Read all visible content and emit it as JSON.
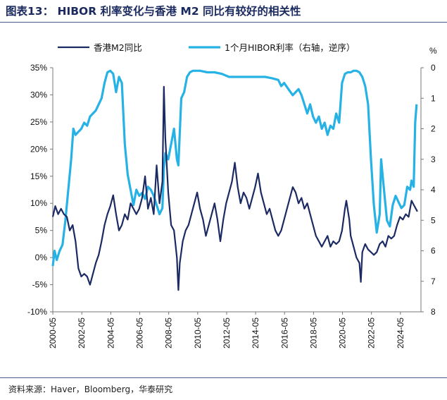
{
  "header": {
    "title": "图表13： HIBOR 利率变化与香港 M2 同比有较好的相关性"
  },
  "footer": {
    "source": "资料来源：Haver，Bloomberg，华泰研究"
  },
  "colors": {
    "m2": "#1b2a63",
    "hibor": "#27b2e6"
  },
  "chart_data": {
    "type": "line",
    "title": "",
    "legend_placement": "top",
    "grid": false,
    "x_ticks": [
      "2000-05",
      "2002-05",
      "2004-05",
      "2006-05",
      "2008-05",
      "2010-05",
      "2012-05",
      "2014-05",
      "2016-05",
      "2018-05",
      "2020-05",
      "2022-05",
      "2024-05"
    ],
    "x_range": [
      2000.33,
      2025.75
    ],
    "left_axis": {
      "ylim": [
        -10,
        35
      ],
      "ticks": [
        "-10%",
        "-5%",
        "0%",
        "5%",
        "10%",
        "15%",
        "20%",
        "25%",
        "30%",
        "35%"
      ]
    },
    "right_axis": {
      "unit": "%",
      "ylim": [
        0,
        8
      ],
      "inverted": true,
      "ticks": [
        "0",
        "1",
        "2",
        "3",
        "4",
        "5",
        "6",
        "7",
        "8"
      ]
    },
    "series": [
      {
        "name": "香港M2同比",
        "axis": "left",
        "points": [
          [
            2000.33,
            7.5
          ],
          [
            2000.5,
            9.5
          ],
          [
            2000.7,
            8
          ],
          [
            2000.9,
            9
          ],
          [
            2001.1,
            8
          ],
          [
            2001.3,
            7.5
          ],
          [
            2001.5,
            5
          ],
          [
            2001.7,
            6
          ],
          [
            2001.9,
            3
          ],
          [
            2002.1,
            -2
          ],
          [
            2002.3,
            -3.5
          ],
          [
            2002.5,
            -3
          ],
          [
            2002.7,
            -3.5
          ],
          [
            2002.9,
            -5
          ],
          [
            2003.1,
            -3
          ],
          [
            2003.3,
            -1
          ],
          [
            2003.5,
            0.5
          ],
          [
            2003.7,
            3
          ],
          [
            2003.9,
            6
          ],
          [
            2004.1,
            8
          ],
          [
            2004.3,
            9.5
          ],
          [
            2004.5,
            11.5
          ],
          [
            2004.7,
            8
          ],
          [
            2004.9,
            5
          ],
          [
            2005.1,
            6
          ],
          [
            2005.3,
            8
          ],
          [
            2005.5,
            7
          ],
          [
            2005.7,
            10
          ],
          [
            2005.9,
            9
          ],
          [
            2006.1,
            8
          ],
          [
            2006.3,
            9
          ],
          [
            2006.5,
            11
          ],
          [
            2006.7,
            15
          ],
          [
            2006.9,
            9
          ],
          [
            2007.1,
            11
          ],
          [
            2007.3,
            8
          ],
          [
            2007.5,
            17
          ],
          [
            2007.7,
            10
          ],
          [
            2007.9,
            14
          ],
          [
            2008.0,
            31.5
          ],
          [
            2008.1,
            22
          ],
          [
            2008.3,
            12
          ],
          [
            2008.5,
            6
          ],
          [
            2008.7,
            5
          ],
          [
            2008.9,
            0
          ],
          [
            2009.0,
            -6
          ],
          [
            2009.1,
            -1
          ],
          [
            2009.3,
            3
          ],
          [
            2009.5,
            5
          ],
          [
            2009.7,
            6
          ],
          [
            2009.9,
            8
          ],
          [
            2010.1,
            10
          ],
          [
            2010.3,
            12
          ],
          [
            2010.5,
            9
          ],
          [
            2010.7,
            7
          ],
          [
            2010.9,
            4
          ],
          [
            2011.1,
            6
          ],
          [
            2011.3,
            8
          ],
          [
            2011.5,
            10
          ],
          [
            2011.7,
            7
          ],
          [
            2011.9,
            3
          ],
          [
            2012.1,
            7
          ],
          [
            2012.3,
            10
          ],
          [
            2012.5,
            12
          ],
          [
            2012.7,
            14
          ],
          [
            2012.9,
            17.5
          ],
          [
            2013.1,
            13
          ],
          [
            2013.3,
            10
          ],
          [
            2013.5,
            12
          ],
          [
            2013.7,
            11
          ],
          [
            2013.9,
            9
          ],
          [
            2014.1,
            11
          ],
          [
            2014.3,
            13
          ],
          [
            2014.5,
            15.5
          ],
          [
            2014.7,
            12
          ],
          [
            2014.9,
            10
          ],
          [
            2015.1,
            8
          ],
          [
            2015.3,
            9
          ],
          [
            2015.5,
            7
          ],
          [
            2015.7,
            5
          ],
          [
            2015.9,
            4
          ],
          [
            2016.1,
            5
          ],
          [
            2016.3,
            7
          ],
          [
            2016.5,
            9
          ],
          [
            2016.7,
            11
          ],
          [
            2016.9,
            13
          ],
          [
            2017.1,
            12
          ],
          [
            2017.3,
            10
          ],
          [
            2017.5,
            11
          ],
          [
            2017.7,
            9
          ],
          [
            2017.9,
            10
          ],
          [
            2018.1,
            8
          ],
          [
            2018.3,
            6
          ],
          [
            2018.5,
            4
          ],
          [
            2018.7,
            3
          ],
          [
            2018.9,
            2
          ],
          [
            2019.1,
            3
          ],
          [
            2019.3,
            4
          ],
          [
            2019.5,
            2
          ],
          [
            2019.7,
            3
          ],
          [
            2019.9,
            2.5
          ],
          [
            2020.1,
            3
          ],
          [
            2020.3,
            5
          ],
          [
            2020.5,
            9
          ],
          [
            2020.6,
            10.5
          ],
          [
            2020.8,
            7
          ],
          [
            2020.9,
            4
          ],
          [
            2021.1,
            2
          ],
          [
            2021.3,
            0
          ],
          [
            2021.5,
            -1
          ],
          [
            2021.6,
            -4.5
          ],
          [
            2021.7,
            1
          ],
          [
            2021.9,
            2.5
          ],
          [
            2022.1,
            1.5
          ],
          [
            2022.3,
            1
          ],
          [
            2022.5,
            0.5
          ],
          [
            2022.7,
            1
          ],
          [
            2022.9,
            2.5
          ],
          [
            2023.1,
            3
          ],
          [
            2023.3,
            2
          ],
          [
            2023.5,
            4
          ],
          [
            2023.7,
            3.5
          ],
          [
            2023.9,
            4
          ],
          [
            2024.1,
            6
          ],
          [
            2024.3,
            7.5
          ],
          [
            2024.5,
            7
          ],
          [
            2024.7,
            8
          ],
          [
            2024.9,
            7.5
          ],
          [
            2025.1,
            10.5
          ],
          [
            2025.3,
            9.5
          ],
          [
            2025.5,
            8.5
          ]
        ]
      },
      {
        "name": "1个月HIBOR利率（右轴，逆序）",
        "axis": "right",
        "points": [
          [
            2000.33,
            6.5
          ],
          [
            2000.45,
            6
          ],
          [
            2000.6,
            6.3
          ],
          [
            2000.8,
            6
          ],
          [
            2001.0,
            5.8
          ],
          [
            2001.2,
            5
          ],
          [
            2001.4,
            4
          ],
          [
            2001.6,
            3
          ],
          [
            2001.75,
            2
          ],
          [
            2001.9,
            2.2
          ],
          [
            2002.1,
            2.1
          ],
          [
            2002.3,
            2
          ],
          [
            2002.5,
            1.8
          ],
          [
            2002.7,
            1.9
          ],
          [
            2002.9,
            1.6
          ],
          [
            2003.1,
            1.5
          ],
          [
            2003.3,
            1.4
          ],
          [
            2003.5,
            1.2
          ],
          [
            2003.7,
            1
          ],
          [
            2003.9,
            0.5
          ],
          [
            2004.1,
            0.15
          ],
          [
            2004.3,
            0.1
          ],
          [
            2004.5,
            0.2
          ],
          [
            2004.7,
            0.8
          ],
          [
            2004.9,
            0.3
          ],
          [
            2005.1,
            0.5
          ],
          [
            2005.3,
            2.5
          ],
          [
            2005.5,
            3.5
          ],
          [
            2005.7,
            4
          ],
          [
            2005.9,
            4.5
          ],
          [
            2006.1,
            4
          ],
          [
            2006.3,
            4.2
          ],
          [
            2006.5,
            4.1
          ],
          [
            2006.7,
            4.3
          ],
          [
            2006.9,
            3.9
          ],
          [
            2007.1,
            4
          ],
          [
            2007.3,
            4.2
          ],
          [
            2007.5,
            4.5
          ],
          [
            2007.7,
            4.8
          ],
          [
            2007.9,
            4.6
          ],
          [
            2008.0,
            3.3
          ],
          [
            2008.1,
            2.8
          ],
          [
            2008.3,
            3
          ],
          [
            2008.5,
            2.5
          ],
          [
            2008.7,
            2
          ],
          [
            2008.9,
            3
          ],
          [
            2009.0,
            3.2
          ],
          [
            2009.2,
            1
          ],
          [
            2009.4,
            0.8
          ],
          [
            2009.6,
            0.3
          ],
          [
            2009.8,
            0.15
          ],
          [
            2010.0,
            0.1
          ],
          [
            2010.5,
            0.1
          ],
          [
            2011.0,
            0.15
          ],
          [
            2011.5,
            0.15
          ],
          [
            2012.0,
            0.2
          ],
          [
            2012.5,
            0.3
          ],
          [
            2013.0,
            0.3
          ],
          [
            2013.5,
            0.3
          ],
          [
            2014.0,
            0.3
          ],
          [
            2014.5,
            0.3
          ],
          [
            2015.0,
            0.3
          ],
          [
            2015.5,
            0.35
          ],
          [
            2015.9,
            0.4
          ],
          [
            2016.1,
            0.6
          ],
          [
            2016.3,
            0.5
          ],
          [
            2016.6,
            0.7
          ],
          [
            2016.9,
            0.9
          ],
          [
            2017.1,
            0.8
          ],
          [
            2017.3,
            0.7
          ],
          [
            2017.5,
            0.9
          ],
          [
            2017.7,
            1.2
          ],
          [
            2017.9,
            1.5
          ],
          [
            2018.1,
            1.2
          ],
          [
            2018.3,
            1.6
          ],
          [
            2018.5,
            1.8
          ],
          [
            2018.7,
            1.6
          ],
          [
            2018.9,
            2
          ],
          [
            2019.1,
            1.8
          ],
          [
            2019.3,
            2.2
          ],
          [
            2019.5,
            1.9
          ],
          [
            2019.7,
            2
          ],
          [
            2019.9,
            1.5
          ],
          [
            2020.1,
            1.8
          ],
          [
            2020.3,
            0.5
          ],
          [
            2020.5,
            0.2
          ],
          [
            2020.7,
            0.15
          ],
          [
            2020.9,
            0.15
          ],
          [
            2021.1,
            0.1
          ],
          [
            2021.3,
            0.1
          ],
          [
            2021.5,
            0.15
          ],
          [
            2021.7,
            0.3
          ],
          [
            2021.9,
            0.6
          ],
          [
            2022.1,
            1.2
          ],
          [
            2022.3,
            3
          ],
          [
            2022.5,
            4.5
          ],
          [
            2022.7,
            5.4
          ],
          [
            2022.9,
            4.8
          ],
          [
            2023.0,
            3
          ],
          [
            2023.2,
            4
          ],
          [
            2023.4,
            5
          ],
          [
            2023.6,
            5.2
          ],
          [
            2023.8,
            4.5
          ],
          [
            2024.0,
            4.2
          ],
          [
            2024.2,
            4.4
          ],
          [
            2024.4,
            4.6
          ],
          [
            2024.6,
            4.5
          ],
          [
            2024.8,
            3.9
          ],
          [
            2025.0,
            4
          ],
          [
            2025.1,
            3.7
          ],
          [
            2025.25,
            3.9
          ],
          [
            2025.35,
            1.8
          ],
          [
            2025.45,
            1.2
          ]
        ]
      }
    ]
  }
}
